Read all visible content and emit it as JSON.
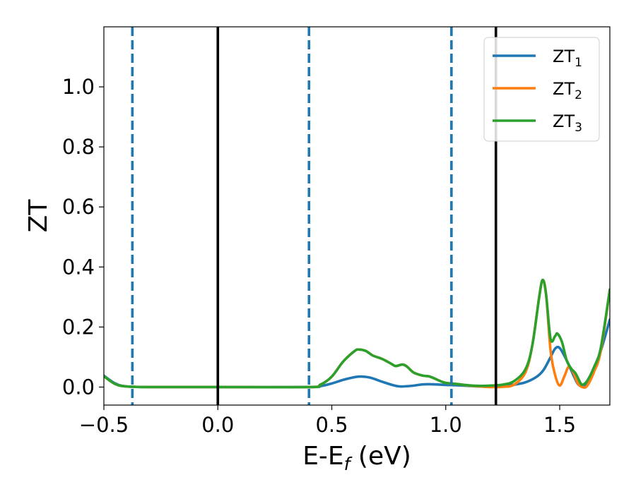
{
  "chart_data": {
    "type": "line",
    "xlabel": "E-E_f (eV)",
    "ylabel": "ZT",
    "xlim": [
      -0.5,
      1.72
    ],
    "ylim": [
      -0.06,
      1.2
    ],
    "x_ticks": [
      -0.5,
      0.0,
      0.5,
      1.0,
      1.5
    ],
    "x_tick_labels": [
      "−0.5",
      "0.0",
      "0.5",
      "1.0",
      "1.5"
    ],
    "y_ticks": [
      0.0,
      0.2,
      0.4,
      0.6,
      0.8,
      1.0
    ],
    "y_tick_labels": [
      "0.0",
      "0.2",
      "0.4",
      "0.6",
      "0.8",
      "1.0"
    ],
    "grid": false,
    "legend_placement": "top-right",
    "vlines_solid": [
      0.0,
      1.22
    ],
    "vlines_dashed": [
      -0.375,
      0.4,
      1.025
    ],
    "series": [
      {
        "name": "ZT",
        "subscript": "1",
        "color": "#1f77b4",
        "points": [
          [
            -0.5,
            0.038
          ],
          [
            -0.45,
            0.012
          ],
          [
            -0.4,
            0.002
          ],
          [
            -0.3,
            0.0
          ],
          [
            0.0,
            0.0
          ],
          [
            0.4,
            0.0
          ],
          [
            0.45,
            0.003
          ],
          [
            0.5,
            0.012
          ],
          [
            0.55,
            0.024
          ],
          [
            0.6,
            0.033
          ],
          [
            0.63,
            0.035
          ],
          [
            0.67,
            0.031
          ],
          [
            0.72,
            0.018
          ],
          [
            0.77,
            0.006
          ],
          [
            0.8,
            0.002
          ],
          [
            0.85,
            0.004
          ],
          [
            0.9,
            0.009
          ],
          [
            0.95,
            0.009
          ],
          [
            1.0,
            0.007
          ],
          [
            1.05,
            0.006
          ],
          [
            1.1,
            0.004
          ],
          [
            1.15,
            0.002
          ],
          [
            1.2,
            0.002
          ],
          [
            1.25,
            0.004
          ],
          [
            1.3,
            0.008
          ],
          [
            1.35,
            0.016
          ],
          [
            1.4,
            0.035
          ],
          [
            1.43,
            0.058
          ],
          [
            1.46,
            0.1
          ],
          [
            1.48,
            0.128
          ],
          [
            1.5,
            0.13
          ],
          [
            1.53,
            0.09
          ],
          [
            1.56,
            0.04
          ],
          [
            1.58,
            0.01
          ],
          [
            1.6,
            0.003
          ],
          [
            1.62,
            0.015
          ],
          [
            1.65,
            0.065
          ],
          [
            1.68,
            0.12
          ],
          [
            1.72,
            0.225
          ]
        ]
      },
      {
        "name": "ZT",
        "subscript": "2",
        "color": "#ff7f0e",
        "points": [
          [
            -0.5,
            0.036
          ],
          [
            -0.45,
            0.01
          ],
          [
            -0.4,
            0.002
          ],
          [
            -0.3,
            0.0
          ],
          [
            0.0,
            0.0
          ],
          [
            0.4,
            0.0
          ],
          [
            0.45,
            0.008
          ],
          [
            0.5,
            0.035
          ],
          [
            0.55,
            0.085
          ],
          [
            0.6,
            0.12
          ],
          [
            0.62,
            0.125
          ],
          [
            0.65,
            0.12
          ],
          [
            0.68,
            0.105
          ],
          [
            0.72,
            0.094
          ],
          [
            0.76,
            0.078
          ],
          [
            0.78,
            0.07
          ],
          [
            0.81,
            0.075
          ],
          [
            0.83,
            0.068
          ],
          [
            0.86,
            0.048
          ],
          [
            0.9,
            0.038
          ],
          [
            0.93,
            0.035
          ],
          [
            0.97,
            0.022
          ],
          [
            1.0,
            0.014
          ],
          [
            1.05,
            0.01
          ],
          [
            1.1,
            0.005
          ],
          [
            1.15,
            0.002
          ],
          [
            1.2,
            0.0
          ],
          [
            1.25,
            0.001
          ],
          [
            1.3,
            0.008
          ],
          [
            1.35,
            0.05
          ],
          [
            1.38,
            0.14
          ],
          [
            1.41,
            0.3
          ],
          [
            1.425,
            0.355
          ],
          [
            1.44,
            0.31
          ],
          [
            1.46,
            0.12
          ],
          [
            1.48,
            0.04
          ],
          [
            1.5,
            0.005
          ],
          [
            1.52,
            0.035
          ],
          [
            1.54,
            0.068
          ],
          [
            1.56,
            0.048
          ],
          [
            1.58,
            0.012
          ],
          [
            1.6,
            0.0
          ],
          [
            1.62,
            0.004
          ],
          [
            1.65,
            0.05
          ],
          [
            1.68,
            0.12
          ],
          [
            1.72,
            0.325
          ]
        ]
      },
      {
        "name": "ZT",
        "subscript": "3",
        "color": "#2ca02c",
        "points": [
          [
            -0.5,
            0.036
          ],
          [
            -0.45,
            0.01
          ],
          [
            -0.4,
            0.002
          ],
          [
            -0.3,
            0.0
          ],
          [
            0.0,
            0.0
          ],
          [
            0.4,
            0.0
          ],
          [
            0.45,
            0.008
          ],
          [
            0.5,
            0.035
          ],
          [
            0.55,
            0.085
          ],
          [
            0.6,
            0.12
          ],
          [
            0.62,
            0.125
          ],
          [
            0.65,
            0.12
          ],
          [
            0.68,
            0.105
          ],
          [
            0.72,
            0.094
          ],
          [
            0.76,
            0.078
          ],
          [
            0.78,
            0.07
          ],
          [
            0.81,
            0.075
          ],
          [
            0.83,
            0.068
          ],
          [
            0.86,
            0.048
          ],
          [
            0.9,
            0.038
          ],
          [
            0.93,
            0.035
          ],
          [
            0.97,
            0.022
          ],
          [
            1.0,
            0.014
          ],
          [
            1.05,
            0.01
          ],
          [
            1.1,
            0.006
          ],
          [
            1.15,
            0.004
          ],
          [
            1.2,
            0.005
          ],
          [
            1.25,
            0.008
          ],
          [
            1.3,
            0.02
          ],
          [
            1.35,
            0.06
          ],
          [
            1.38,
            0.14
          ],
          [
            1.41,
            0.3
          ],
          [
            1.425,
            0.357
          ],
          [
            1.44,
            0.31
          ],
          [
            1.46,
            0.16
          ],
          [
            1.48,
            0.17
          ],
          [
            1.49,
            0.178
          ],
          [
            1.51,
            0.15
          ],
          [
            1.53,
            0.09
          ],
          [
            1.55,
            0.062
          ],
          [
            1.57,
            0.045
          ],
          [
            1.59,
            0.015
          ],
          [
            1.6,
            0.008
          ],
          [
            1.62,
            0.02
          ],
          [
            1.65,
            0.065
          ],
          [
            1.68,
            0.13
          ],
          [
            1.72,
            0.325
          ]
        ]
      }
    ]
  }
}
